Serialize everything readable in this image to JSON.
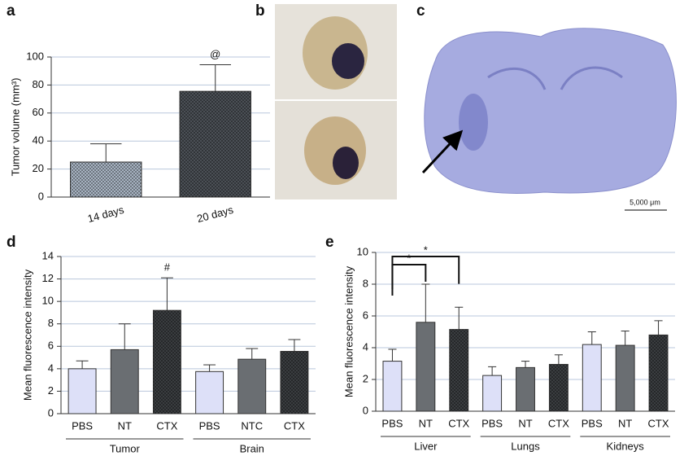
{
  "chart_data": [
    {
      "panel": "a",
      "type": "bar",
      "categories": [
        "14 days",
        "20 days"
      ],
      "values": [
        25,
        75.5
      ],
      "errors": [
        13,
        19
      ],
      "colors": [
        "#a7b3c2",
        "#4b5056"
      ],
      "hatched": [
        true,
        true
      ],
      "ylabel": "Tumor volume (mm³)",
      "ylim": [
        0,
        100
      ],
      "yticks": [
        0,
        20,
        40,
        60,
        80,
        100
      ],
      "grid": true,
      "rotate_labels": true,
      "annotations": [
        {
          "text": "@",
          "category": 1
        }
      ]
    },
    {
      "panel": "d",
      "type": "bar",
      "categories": [
        "PBS",
        "NT",
        "CTX",
        "PBS",
        "NTC",
        "CTX"
      ],
      "group_labels": [
        "Tumor",
        "Brain"
      ],
      "values": [
        4.0,
        5.7,
        9.2,
        3.75,
        4.85,
        5.55
      ],
      "errors": [
        0.7,
        2.3,
        2.9,
        0.6,
        0.95,
        1.05
      ],
      "colors": [
        "#dde0f8",
        "#6a6e72",
        "#3a3d40",
        "#dde0f8",
        "#6a6e72",
        "#3a3d40"
      ],
      "hatched": [
        false,
        false,
        true,
        false,
        false,
        true
      ],
      "ylabel": "Mean fluorescence intensity",
      "ylim": [
        0,
        14
      ],
      "yticks": [
        0,
        2,
        4,
        6,
        8,
        10,
        12,
        14
      ],
      "grid": true,
      "annotations": [
        {
          "text": "#",
          "category": 2
        }
      ]
    },
    {
      "panel": "e",
      "type": "bar",
      "categories": [
        "PBS",
        "NT",
        "CTX",
        "PBS",
        "NT",
        "CTX",
        "PBS",
        "NT",
        "CTX"
      ],
      "group_labels": [
        "Liver",
        "Lungs",
        "Kidneys"
      ],
      "values": [
        3.15,
        5.6,
        5.15,
        2.25,
        2.75,
        2.95,
        4.2,
        4.15,
        4.8
      ],
      "errors": [
        0.75,
        2.4,
        1.4,
        0.55,
        0.4,
        0.6,
        0.8,
        0.9,
        0.9
      ],
      "colors": [
        "#dde0f8",
        "#6a6e72",
        "#3a3d40",
        "#dde0f8",
        "#6a6e72",
        "#3a3d40",
        "#dde0f8",
        "#6a6e72",
        "#3a3d40"
      ],
      "hatched": [
        false,
        false,
        true,
        false,
        false,
        true,
        false,
        false,
        true
      ],
      "ylabel": "Mean fluorescence intensity",
      "ylim": [
        0,
        10
      ],
      "yticks": [
        0,
        2,
        4,
        6,
        8,
        10
      ],
      "grid": true,
      "brackets": [
        {
          "text": "*",
          "from": 0,
          "to": 1
        },
        {
          "text": "*",
          "from": 0,
          "to": 2
        }
      ]
    }
  ],
  "photos": [
    {
      "panel": "b"
    },
    {
      "panel": "c",
      "scale_label": "5,000 μm"
    }
  ]
}
